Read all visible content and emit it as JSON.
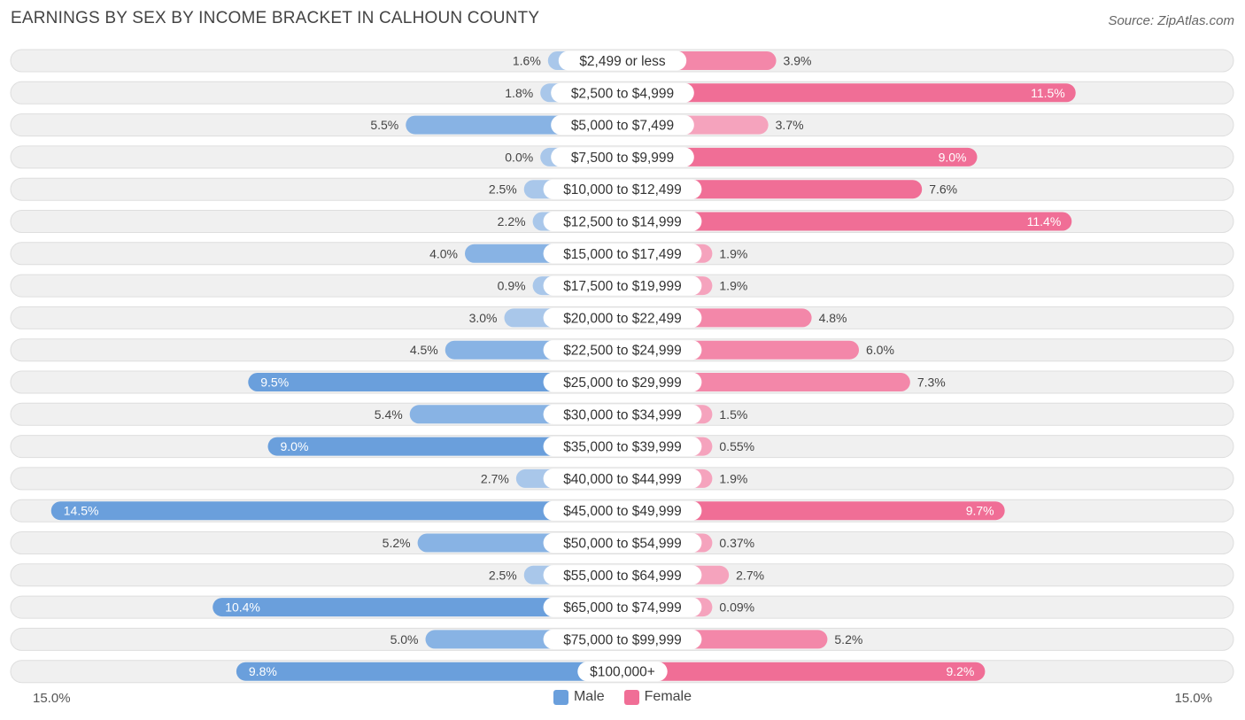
{
  "title": "EARNINGS BY SEX BY INCOME BRACKET IN CALHOUN COUNTY",
  "source": "Source: ZipAtlas.com",
  "colors": {
    "male": "#7aa7de",
    "male_light": "#a9c7ea",
    "female": "#f06e96",
    "female_light": "#f5a3bd",
    "row_bg": "#f0f0f0",
    "row_border": "#dedede"
  },
  "legend": {
    "male": "Male",
    "female": "Female"
  },
  "axis": {
    "left_label": "15.0%",
    "right_label": "15.0%"
  },
  "chart_data": {
    "type": "bar",
    "orientation": "horizontal-diverging",
    "title": "EARNINGS BY SEX BY INCOME BRACKET IN CALHOUN COUNTY",
    "xlim": [
      -15,
      15
    ],
    "categories": [
      "$2,499 or less",
      "$2,500 to $4,999",
      "$5,000 to $7,499",
      "$7,500 to $9,999",
      "$10,000 to $12,499",
      "$12,500 to $14,999",
      "$15,000 to $17,499",
      "$17,500 to $19,999",
      "$20,000 to $22,499",
      "$22,500 to $24,999",
      "$25,000 to $29,999",
      "$30,000 to $34,999",
      "$35,000 to $39,999",
      "$40,000 to $44,999",
      "$45,000 to $49,999",
      "$50,000 to $54,999",
      "$55,000 to $64,999",
      "$65,000 to $74,999",
      "$75,000 to $99,999",
      "$100,000+"
    ],
    "series": [
      {
        "name": "Male",
        "values": [
          1.6,
          1.8,
          5.5,
          0.0,
          2.5,
          2.2,
          4.0,
          0.9,
          3.0,
          4.5,
          9.5,
          5.4,
          9.0,
          2.7,
          14.5,
          5.2,
          2.5,
          10.4,
          5.0,
          9.8
        ],
        "labels": [
          "1.6%",
          "1.8%",
          "5.5%",
          "0.0%",
          "2.5%",
          "2.2%",
          "4.0%",
          "0.9%",
          "3.0%",
          "4.5%",
          "9.5%",
          "5.4%",
          "9.0%",
          "2.7%",
          "14.5%",
          "5.2%",
          "2.5%",
          "10.4%",
          "5.0%",
          "9.8%"
        ]
      },
      {
        "name": "Female",
        "values": [
          3.9,
          11.5,
          3.7,
          9.0,
          7.6,
          11.4,
          1.9,
          1.9,
          4.8,
          6.0,
          7.3,
          1.5,
          0.55,
          1.9,
          9.7,
          0.37,
          2.7,
          0.09,
          5.2,
          9.2
        ],
        "labels": [
          "3.9%",
          "11.5%",
          "3.7%",
          "9.0%",
          "7.6%",
          "11.4%",
          "1.9%",
          "1.9%",
          "4.8%",
          "6.0%",
          "7.3%",
          "1.5%",
          "0.55%",
          "1.9%",
          "9.7%",
          "0.37%",
          "2.7%",
          "0.09%",
          "5.2%",
          "9.2%"
        ]
      }
    ]
  }
}
